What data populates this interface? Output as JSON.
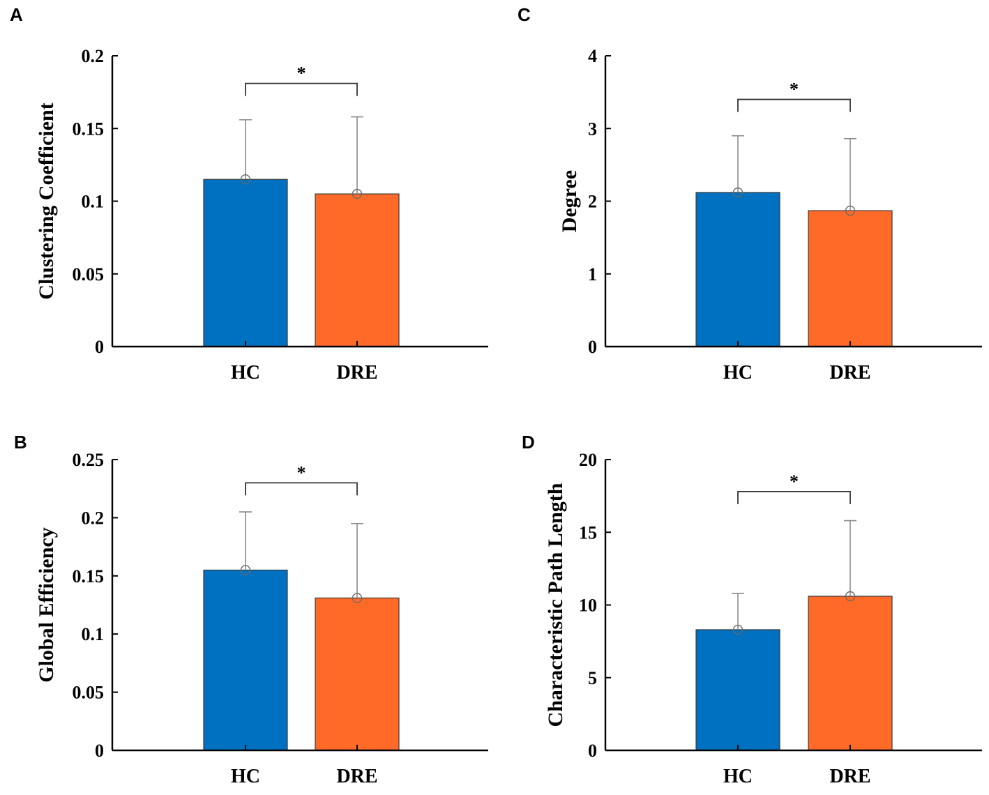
{
  "chart_data": [
    {
      "type": "bar",
      "panel": "A",
      "categories": [
        "HC",
        "DRE"
      ],
      "values": [
        0.115,
        0.105
      ],
      "error_upper": [
        0.156,
        0.158
      ],
      "ylabel": "Clustering Coefficient",
      "ylim": [
        0,
        0.2
      ],
      "yticks": [
        0,
        0.05,
        0.1,
        0.15,
        0.2
      ],
      "ytick_labels": [
        "0",
        "0.05",
        "0.1",
        "0.15",
        "0.2"
      ],
      "significance": "*",
      "bracket_value": 0.181,
      "colors": [
        "#0070C0",
        "#FF6A28"
      ]
    },
    {
      "type": "bar",
      "panel": "B",
      "categories": [
        "HC",
        "DRE"
      ],
      "values": [
        0.155,
        0.131
      ],
      "error_upper": [
        0.205,
        0.195
      ],
      "ylabel": "Global Efficiency",
      "ylim": [
        0,
        0.25
      ],
      "yticks": [
        0,
        0.05,
        0.1,
        0.15,
        0.2,
        0.25
      ],
      "ytick_labels": [
        "0",
        "0.05",
        "0.1",
        "0.15",
        "0.2",
        "0.25"
      ],
      "significance": "*",
      "bracket_value": 0.23,
      "colors": [
        "#0070C0",
        "#FF6A28"
      ]
    },
    {
      "type": "bar",
      "panel": "C",
      "categories": [
        "HC",
        "DRE"
      ],
      "values": [
        2.12,
        1.87
      ],
      "error_upper": [
        2.9,
        2.86
      ],
      "ylabel": "Degree",
      "ylim": [
        0,
        4
      ],
      "yticks": [
        0,
        1,
        2,
        3,
        4
      ],
      "ytick_labels": [
        "0",
        "1",
        "2",
        "3",
        "4"
      ],
      "significance": "*",
      "bracket_value": 3.4,
      "colors": [
        "#0070C0",
        "#FF6A28"
      ]
    },
    {
      "type": "bar",
      "panel": "D",
      "categories": [
        "HC",
        "DRE"
      ],
      "values": [
        8.3,
        10.6
      ],
      "error_upper": [
        10.8,
        15.8
      ],
      "ylabel": "Characteristic Path Length",
      "ylim": [
        0,
        20
      ],
      "yticks": [
        0,
        5,
        10,
        15,
        20
      ],
      "ytick_labels": [
        "0",
        "5",
        "10",
        "15",
        "20"
      ],
      "significance": "*",
      "bracket_value": 17.8,
      "colors": [
        "#0070C0",
        "#FF6A28"
      ]
    }
  ]
}
